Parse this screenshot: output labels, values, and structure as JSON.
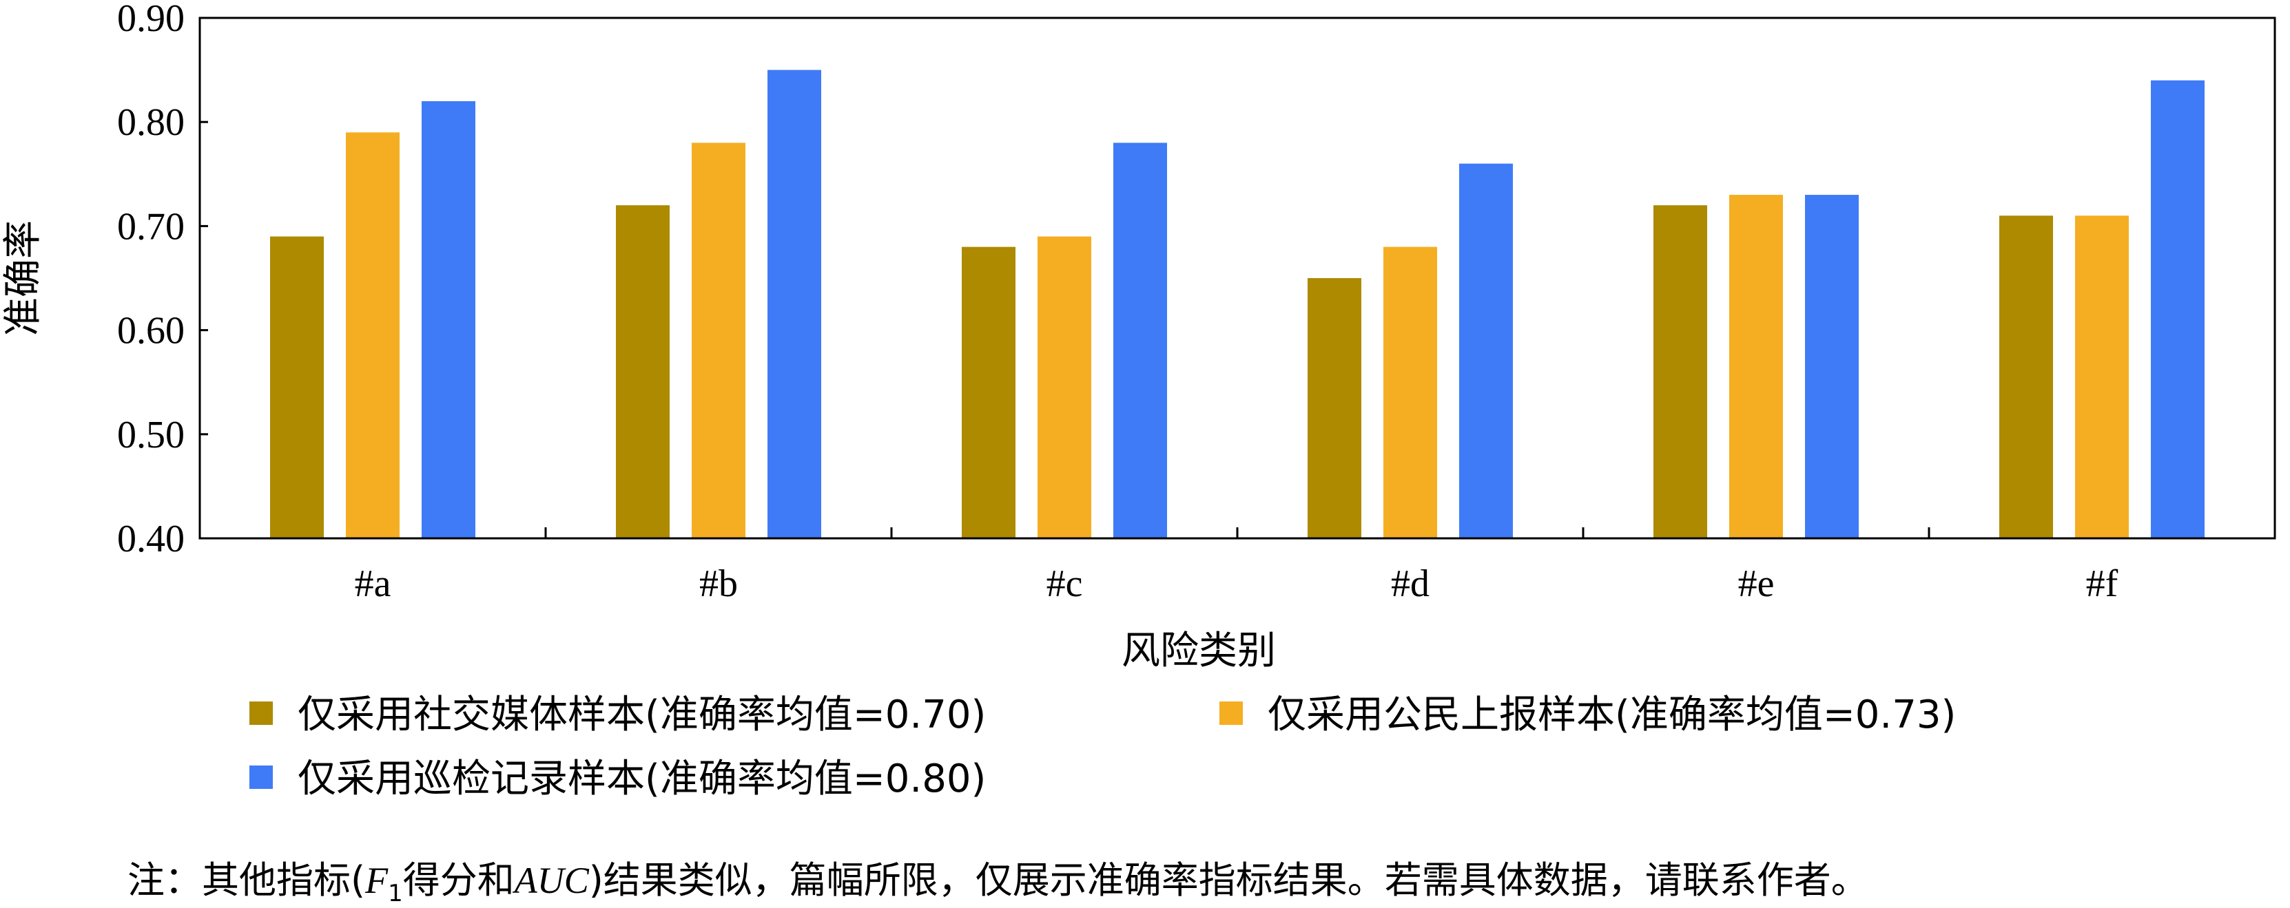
{
  "chart_data": {
    "type": "bar",
    "categories": [
      "#a",
      "#b",
      "#c",
      "#d",
      "#e",
      "#f"
    ],
    "series": [
      {
        "name": "仅采用社交媒体样本(准确率均值=0.70)",
        "color": "#AD8A00",
        "values": [
          0.69,
          0.72,
          0.68,
          0.65,
          0.72,
          0.71
        ]
      },
      {
        "name": "仅采用公民上报样本(准确率均值=0.73)",
        "color": "#F5AE22",
        "values": [
          0.79,
          0.78,
          0.69,
          0.68,
          0.73,
          0.71
        ]
      },
      {
        "name": "仅采用巡检记录样本(准确率均值=0.80)",
        "color": "#3F7BF7",
        "values": [
          0.82,
          0.85,
          0.78,
          0.76,
          0.73,
          0.84
        ]
      }
    ],
    "yticks": [
      "0.40",
      "0.50",
      "0.60",
      "0.70",
      "0.80",
      "0.90"
    ],
    "ylim": [
      0.4,
      0.9
    ],
    "xlabel": "风险类别",
    "ylabel": "准确率",
    "legend_position": "bottom",
    "grid": false
  },
  "note": {
    "prefix": "注：其他指标(",
    "f_letter": "F",
    "f_subscript": "1",
    "middle": "得分和",
    "auc": "AUC",
    "suffix": ")结果类似，篇幅所限，仅展示准确率指标结果。若需具体数据，请联系作者。"
  }
}
